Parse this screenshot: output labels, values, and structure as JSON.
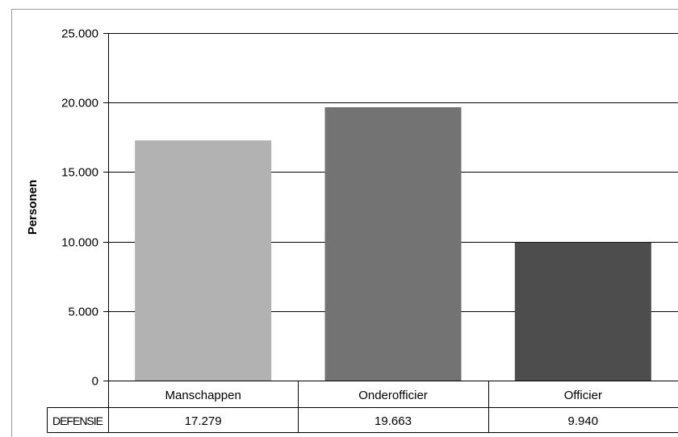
{
  "chart_data": {
    "type": "bar",
    "ylabel": "Personen",
    "ylim": [
      0,
      25000
    ],
    "yticks": [
      0,
      5000,
      10000,
      15000,
      20000,
      25000
    ],
    "ytick_labels": [
      "0",
      "5.000",
      "10.000",
      "15.000",
      "20.000",
      "25.000"
    ],
    "grid": true,
    "categories": [
      "Manschappen",
      "Onderofficier",
      "Officier"
    ],
    "series": [
      {
        "name": "DEFENSIE",
        "values": [
          17279,
          19663,
          9940
        ],
        "value_labels": [
          "17.279",
          "19.663",
          "9.940"
        ],
        "colors": [
          "#b2b2b2",
          "#737373",
          "#4d4d4d"
        ]
      }
    ]
  }
}
